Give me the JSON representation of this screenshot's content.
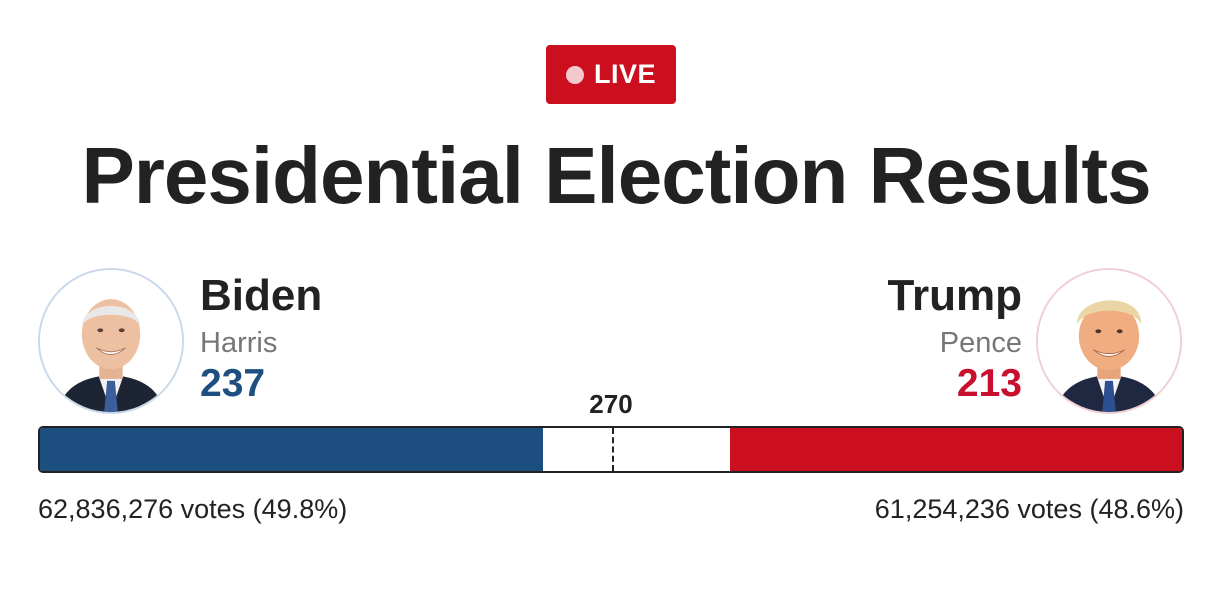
{
  "badge": {
    "label": "LIVE",
    "color": "#cc0f1f"
  },
  "title": "Presidential Election Results",
  "threshold": {
    "label": "270",
    "value": 270
  },
  "total_electoral_votes": 538,
  "candidates": {
    "left": {
      "name": "Biden",
      "running_mate": "Harris",
      "electoral_votes": "237",
      "electoral_value": 237,
      "popular_votes": "62,836,276 votes (49.8%)",
      "color": "#1c4e80",
      "photo": "biden-portrait"
    },
    "right": {
      "name": "Trump",
      "running_mate": "Pence",
      "electoral_votes": "213",
      "electoral_value": 213,
      "popular_votes": "61,254,236 votes (48.6%)",
      "color": "#cc0f1f",
      "photo": "trump-portrait"
    }
  }
}
